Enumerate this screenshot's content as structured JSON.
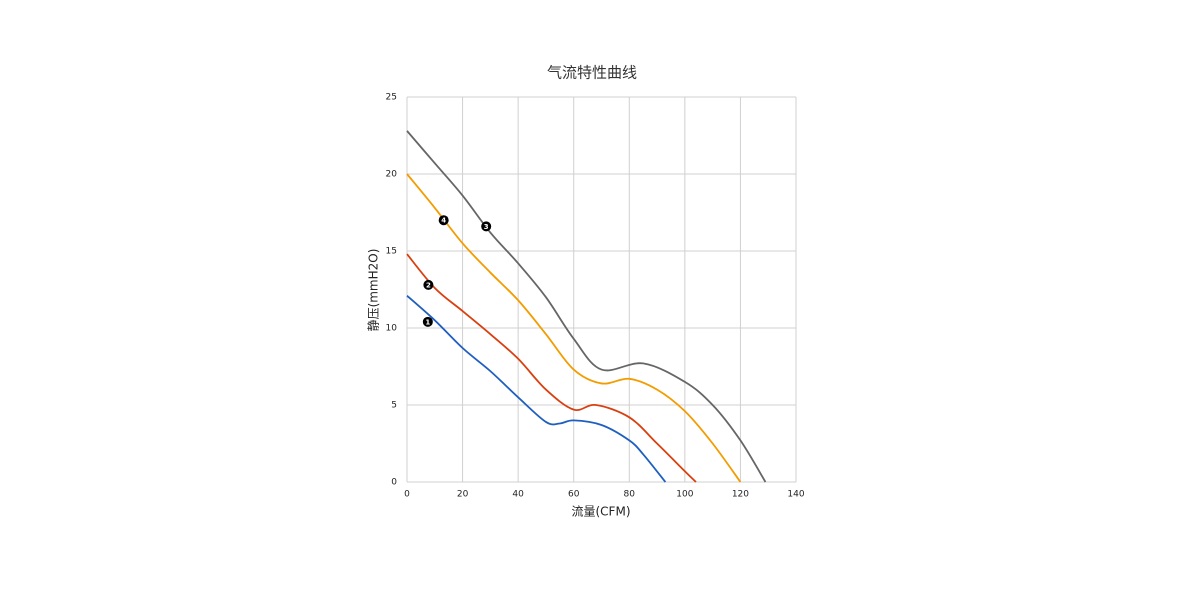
{
  "chart_data": {
    "type": "line",
    "title": "气流特性曲线",
    "x_label": "流量(CFM)",
    "y_label": "静压(mmH2O)",
    "xlim": [
      0,
      140
    ],
    "xticks": [
      0,
      20,
      40,
      60,
      80,
      100,
      120,
      140
    ],
    "ylim": [
      0,
      25
    ],
    "yticks": [
      0,
      5,
      10,
      15,
      20,
      25
    ],
    "grid": true,
    "series": [
      {
        "name": "1",
        "color": "#1f5fbf",
        "x": [
          0,
          10,
          20,
          30,
          40,
          50,
          55,
          60,
          70,
          80,
          85,
          93
        ],
        "values": [
          12.1,
          10.5,
          8.7,
          7.2,
          5.5,
          3.9,
          3.8,
          4.0,
          3.7,
          2.7,
          1.8,
          0
        ],
        "marker": {
          "x": 7.5,
          "y": 10.4
        }
      },
      {
        "name": "2",
        "color": "#d9400f",
        "x": [
          0,
          10,
          20,
          30,
          40,
          50,
          60,
          68,
          80,
          90,
          100,
          104
        ],
        "values": [
          14.8,
          12.6,
          11.1,
          9.6,
          8.0,
          6.0,
          4.7,
          5.0,
          4.2,
          2.5,
          0.7,
          0
        ],
        "marker": {
          "x": 7.7,
          "y": 12.8
        }
      },
      {
        "name": "4",
        "color": "#f39c00",
        "x": [
          0,
          10,
          20,
          30,
          40,
          50,
          60,
          70,
          80,
          90,
          100,
          110,
          120
        ],
        "values": [
          20,
          17.8,
          15.5,
          13.6,
          11.8,
          9.6,
          7.3,
          6.4,
          6.7,
          6.0,
          4.6,
          2.5,
          0
        ],
        "marker": {
          "x": 13.2,
          "y": 17.0
        }
      },
      {
        "name": "3",
        "color": "#666666",
        "x": [
          0,
          10,
          20,
          30,
          40,
          50,
          60,
          70,
          85,
          100,
          110,
          120,
          129
        ],
        "values": [
          22.8,
          20.7,
          18.6,
          16.2,
          14.2,
          12.0,
          9.3,
          7.3,
          7.7,
          6.5,
          5.0,
          2.7,
          0
        ],
        "marker": {
          "x": 28.5,
          "y": 16.6
        }
      }
    ]
  }
}
